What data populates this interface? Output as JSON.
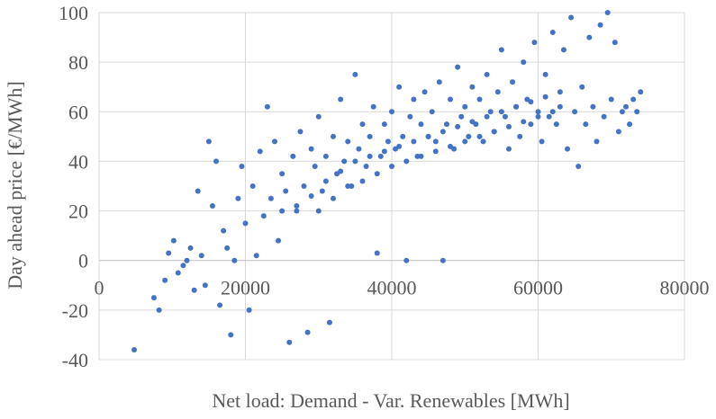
{
  "chart_data": {
    "type": "scatter",
    "title": "",
    "xlabel": "Net load: Demand - Var. Renewables [MWh]",
    "ylabel": "Day ahead price [€/MWh]",
    "xlim": [
      0,
      80000
    ],
    "ylim": [
      -40,
      100
    ],
    "xticks": [
      0,
      20000,
      40000,
      60000,
      80000
    ],
    "yticks": [
      -40,
      -20,
      0,
      20,
      40,
      60,
      80,
      100
    ],
    "xtick_labels": [
      "0",
      "20000",
      "40000",
      "60000",
      "80000"
    ],
    "ytick_labels": [
      "-40",
      "-20",
      "0",
      "20",
      "40",
      "60",
      "80",
      "100"
    ],
    "grid": "both",
    "legend": "none",
    "marker_color": "#4472C4",
    "points": [
      [
        4800,
        -36
      ],
      [
        7500,
        -15
      ],
      [
        8200,
        -20
      ],
      [
        9000,
        -8
      ],
      [
        9500,
        3
      ],
      [
        10200,
        8
      ],
      [
        10800,
        -5
      ],
      [
        11500,
        -2
      ],
      [
        12000,
        0
      ],
      [
        12500,
        5
      ],
      [
        13000,
        -12
      ],
      [
        13500,
        28
      ],
      [
        14000,
        2
      ],
      [
        14500,
        -10
      ],
      [
        15000,
        48
      ],
      [
        15500,
        22
      ],
      [
        16000,
        40
      ],
      [
        16500,
        -18
      ],
      [
        17000,
        12
      ],
      [
        17500,
        5
      ],
      [
        18000,
        -30
      ],
      [
        18500,
        0
      ],
      [
        19000,
        25
      ],
      [
        19500,
        38
      ],
      [
        20000,
        15
      ],
      [
        20500,
        -20
      ],
      [
        21000,
        30
      ],
      [
        21500,
        2
      ],
      [
        22000,
        44
      ],
      [
        22500,
        18
      ],
      [
        23000,
        62
      ],
      [
        23500,
        25
      ],
      [
        24000,
        48
      ],
      [
        24500,
        8
      ],
      [
        25000,
        35
      ],
      [
        25500,
        28
      ],
      [
        26000,
        -33
      ],
      [
        26500,
        42
      ],
      [
        27000,
        20
      ],
      [
        27500,
        52
      ],
      [
        28000,
        30
      ],
      [
        28500,
        -29
      ],
      [
        29000,
        45
      ],
      [
        29500,
        38
      ],
      [
        30000,
        58
      ],
      [
        30500,
        28
      ],
      [
        31000,
        42
      ],
      [
        31500,
        -25
      ],
      [
        32000,
        50
      ],
      [
        32500,
        35
      ],
      [
        33000,
        65
      ],
      [
        33500,
        40
      ],
      [
        34000,
        48
      ],
      [
        34500,
        30
      ],
      [
        35000,
        75
      ],
      [
        35500,
        45
      ],
      [
        36000,
        55
      ],
      [
        36500,
        38
      ],
      [
        37000,
        50
      ],
      [
        37500,
        62
      ],
      [
        38000,
        3
      ],
      [
        38500,
        42
      ],
      [
        39000,
        55
      ],
      [
        39500,
        48
      ],
      [
        40000,
        60
      ],
      [
        40500,
        45
      ],
      [
        41000,
        70
      ],
      [
        41500,
        50
      ],
      [
        42000,
        0
      ],
      [
        42500,
        58
      ],
      [
        43000,
        65
      ],
      [
        43500,
        42
      ],
      [
        44000,
        55
      ],
      [
        44500,
        68
      ],
      [
        45000,
        50
      ],
      [
        45500,
        60
      ],
      [
        46000,
        48
      ],
      [
        46500,
        72
      ],
      [
        47000,
        0
      ],
      [
        47500,
        55
      ],
      [
        48000,
        65
      ],
      [
        48500,
        45
      ],
      [
        49000,
        78
      ],
      [
        49500,
        58
      ],
      [
        50000,
        62
      ],
      [
        50500,
        50
      ],
      [
        51000,
        70
      ],
      [
        51500,
        55
      ],
      [
        52000,
        65
      ],
      [
        52500,
        48
      ],
      [
        53000,
        75
      ],
      [
        53500,
        60
      ],
      [
        54000,
        52
      ],
      [
        54500,
        68
      ],
      [
        55000,
        85
      ],
      [
        55500,
        58
      ],
      [
        56000,
        45
      ],
      [
        56500,
        72
      ],
      [
        57000,
        62
      ],
      [
        57500,
        50
      ],
      [
        58000,
        80
      ],
      [
        58500,
        65
      ],
      [
        59000,
        55
      ],
      [
        59500,
        88
      ],
      [
        60000,
        60
      ],
      [
        60500,
        48
      ],
      [
        61000,
        75
      ],
      [
        61500,
        58
      ],
      [
        62000,
        92
      ],
      [
        62500,
        55
      ],
      [
        63000,
        62
      ],
      [
        63500,
        85
      ],
      [
        64000,
        45
      ],
      [
        64500,
        98
      ],
      [
        65000,
        60
      ],
      [
        65500,
        38
      ],
      [
        66000,
        70
      ],
      [
        66500,
        55
      ],
      [
        67000,
        90
      ],
      [
        67500,
        62
      ],
      [
        68000,
        48
      ],
      [
        68500,
        95
      ],
      [
        69000,
        58
      ],
      [
        69500,
        100
      ],
      [
        70000,
        65
      ],
      [
        70500,
        88
      ],
      [
        71000,
        52
      ],
      [
        71500,
        60
      ],
      [
        72000,
        62
      ],
      [
        72500,
        55
      ],
      [
        73000,
        65
      ],
      [
        73500,
        60
      ],
      [
        74000,
        68
      ],
      [
        30000,
        20
      ],
      [
        32000,
        25
      ],
      [
        34000,
        30
      ],
      [
        36000,
        32
      ],
      [
        38000,
        35
      ],
      [
        40000,
        38
      ],
      [
        42000,
        40
      ],
      [
        44000,
        42
      ],
      [
        46000,
        44
      ],
      [
        48000,
        46
      ],
      [
        50000,
        48
      ],
      [
        52000,
        50
      ],
      [
        54000,
        52
      ],
      [
        56000,
        54
      ],
      [
        58000,
        56
      ],
      [
        60000,
        58
      ],
      [
        62000,
        60
      ],
      [
        25000,
        20
      ],
      [
        27000,
        22
      ],
      [
        29000,
        26
      ],
      [
        31000,
        32
      ],
      [
        33000,
        36
      ],
      [
        35000,
        40
      ],
      [
        37000,
        42
      ],
      [
        39000,
        44
      ],
      [
        41000,
        46
      ],
      [
        43000,
        48
      ],
      [
        45000,
        50
      ],
      [
        47000,
        52
      ],
      [
        49000,
        54
      ],
      [
        51000,
        56
      ],
      [
        53000,
        58
      ],
      [
        55000,
        60
      ],
      [
        57000,
        62
      ],
      [
        59000,
        64
      ],
      [
        61000,
        66
      ],
      [
        63000,
        68
      ]
    ]
  }
}
